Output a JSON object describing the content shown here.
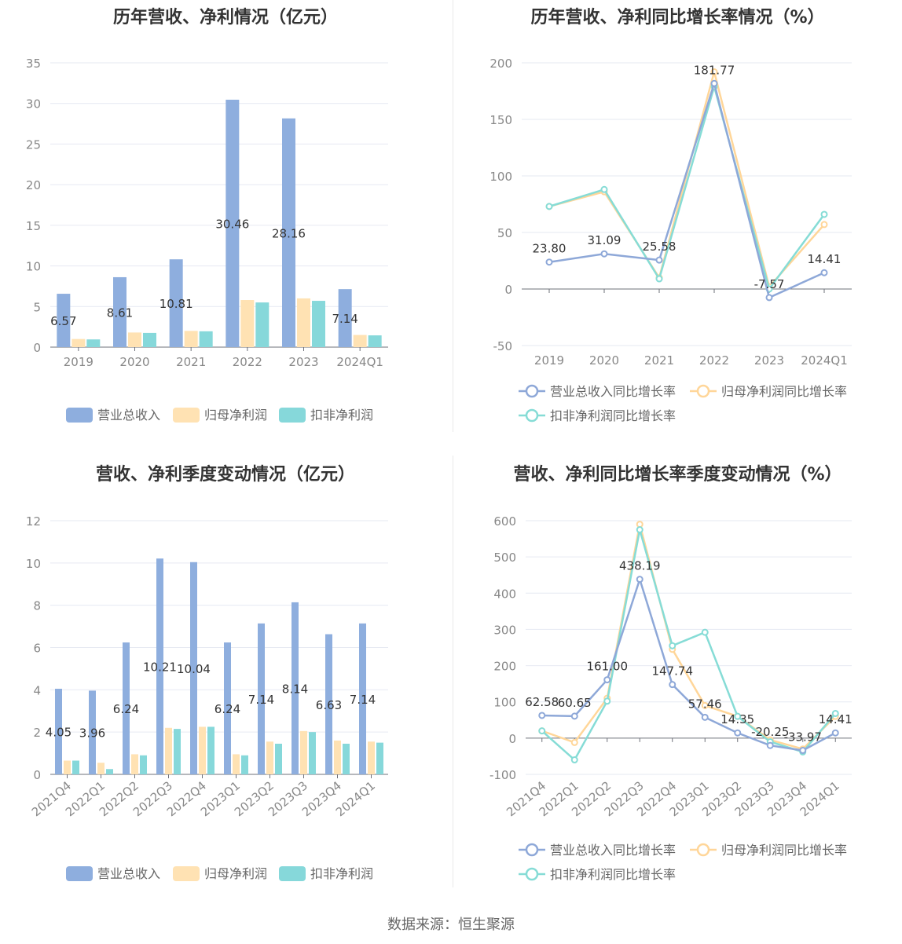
{
  "colors": {
    "revenue": "#8eaede",
    "parent_profit": "#ffe2b3",
    "deducted_profit": "#86d8da",
    "revenue_line": "#8ea8d8",
    "parent_line": "#ffd699",
    "deducted_line": "#86dcd6",
    "axis_text": "#888888",
    "grid": "#e6e9f2"
  },
  "footer": {
    "source": "数据来源：恒生聚源"
  },
  "chart_data": [
    {
      "type": "bar",
      "title": "历年营收、净利情况（亿元）",
      "categories": [
        "2019",
        "2020",
        "2021",
        "2022",
        "2023",
        "2024Q1"
      ],
      "ylim": [
        0,
        35
      ],
      "yticks": [
        "0",
        "5",
        "10",
        "15",
        "20",
        "25",
        "30",
        "35"
      ],
      "grid": true,
      "legend_position": "bottom",
      "series": [
        {
          "name": "营业总收入",
          "values": [
            6.57,
            8.61,
            10.81,
            30.46,
            28.16,
            7.14
          ],
          "labels": [
            "6.57",
            "8.61",
            "10.81",
            "30.46",
            "28.16",
            "7.14"
          ]
        },
        {
          "name": "归母净利润",
          "values": [
            1.0,
            1.8,
            2.0,
            5.8,
            6.0,
            1.5
          ]
        },
        {
          "name": "扣非净利润",
          "values": [
            0.95,
            1.75,
            1.95,
            5.5,
            5.7,
            1.45
          ]
        }
      ]
    },
    {
      "type": "line",
      "title": "历年营收、净利同比增长率情况（%）",
      "categories": [
        "2019",
        "2020",
        "2021",
        "2022",
        "2023",
        "2024Q1"
      ],
      "ylim": [
        -50,
        200
      ],
      "yticks": [
        "-50",
        "0",
        "50",
        "100",
        "150",
        "200"
      ],
      "grid": true,
      "legend_position": "bottom",
      "series": [
        {
          "name": "营业总收入同比增长率",
          "values": [
            23.8,
            31.09,
            25.58,
            181.77,
            -7.57,
            14.41
          ],
          "labels": [
            "23.80",
            "31.09",
            "25.58",
            "181.77",
            "-7.57",
            "14.41"
          ]
        },
        {
          "name": "归母净利润同比增长率",
          "values": [
            73,
            86,
            10,
            192,
            2,
            57
          ]
        },
        {
          "name": "扣非净利润同比增长率",
          "values": [
            73,
            88,
            9,
            179,
            0,
            66
          ]
        }
      ]
    },
    {
      "type": "bar",
      "title": "营收、净利季度变动情况（亿元）",
      "categories": [
        "2021Q4",
        "2022Q1",
        "2022Q2",
        "2022Q3",
        "2022Q4",
        "2023Q1",
        "2023Q2",
        "2023Q3",
        "2023Q4",
        "2024Q1"
      ],
      "ylim": [
        0,
        12
      ],
      "yticks": [
        "0",
        "2",
        "4",
        "6",
        "8",
        "10",
        "12"
      ],
      "grid": true,
      "legend_position": "bottom",
      "series": [
        {
          "name": "营业总收入",
          "values": [
            4.05,
            3.96,
            6.24,
            10.21,
            10.04,
            6.24,
            7.14,
            8.14,
            6.63,
            7.14
          ],
          "labels": [
            "4.05",
            "3.96",
            "6.24",
            "10.21",
            "10.04",
            "6.24",
            "7.14",
            "8.14",
            "6.63",
            "7.14"
          ]
        },
        {
          "name": "归母净利润",
          "values": [
            0.65,
            0.55,
            0.95,
            2.2,
            2.25,
            0.95,
            1.55,
            2.05,
            1.6,
            1.55
          ]
        },
        {
          "name": "扣非净利润",
          "values": [
            0.65,
            0.25,
            0.9,
            2.15,
            2.25,
            0.9,
            1.45,
            2.0,
            1.45,
            1.5
          ]
        }
      ]
    },
    {
      "type": "line",
      "title": "营收、净利同比增长率季度变动情况（%）",
      "categories": [
        "2021Q4",
        "2022Q1",
        "2022Q2",
        "2022Q3",
        "2022Q4",
        "2023Q1",
        "2023Q2",
        "2023Q3",
        "2023Q4",
        "2024Q1"
      ],
      "ylim": [
        -100,
        600
      ],
      "yticks": [
        "-100",
        "0",
        "100",
        "200",
        "300",
        "400",
        "500",
        "600"
      ],
      "grid": true,
      "legend_position": "bottom",
      "series": [
        {
          "name": "营业总收入同比增长率",
          "values": [
            62.58,
            60.65,
            161.0,
            438.19,
            147.74,
            57.46,
            14.35,
            -20.25,
            -33.97,
            14.41
          ],
          "labels": [
            "62.58",
            "60.65",
            "161.00",
            "438.19",
            "147.74",
            "57.46",
            "14.35",
            "-20.25",
            "-33.97",
            "14.41"
          ]
        },
        {
          "name": "归母净利润同比增长率",
          "values": [
            20,
            -12,
            110,
            590,
            245,
            90,
            60,
            -5,
            -30,
            60
          ]
        },
        {
          "name": "扣非净利润同比增长率",
          "values": [
            20,
            -60,
            102,
            575,
            255,
            292,
            60,
            -10,
            -38,
            68
          ]
        }
      ]
    }
  ]
}
